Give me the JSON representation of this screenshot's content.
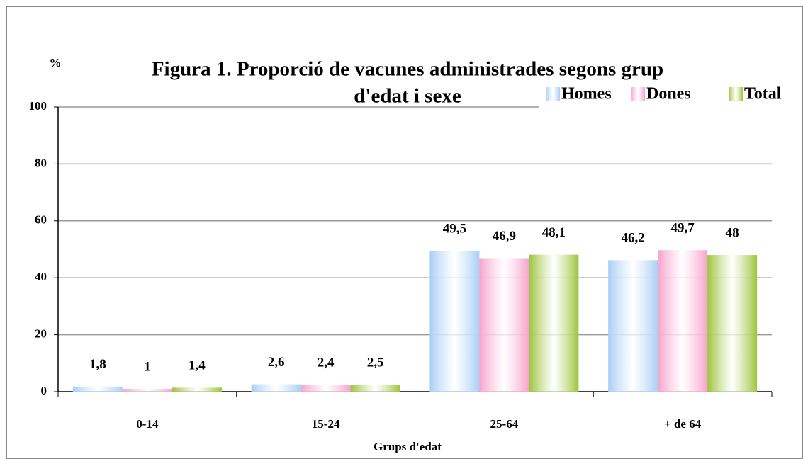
{
  "chart_data": {
    "type": "bar",
    "title": [
      "Figura 1. Proporció de vacunes administrades segons grup",
      "d'edat i sexe"
    ],
    "y_label": "%",
    "x_label": "Grups d'edat",
    "categories": [
      "0-14",
      "15-24",
      "25-64",
      "+ de 64"
    ],
    "series": [
      {
        "name": "Homes",
        "color": "#a9cff5",
        "values": [
          1.8,
          2.6,
          49.5,
          46.2
        ],
        "value_labels": [
          "1,8",
          "2,6",
          "49,5",
          "46,2"
        ]
      },
      {
        "name": "Dones",
        "color": "#f7a3cd",
        "values": [
          1,
          2.4,
          46.9,
          49.7
        ],
        "value_labels": [
          "1",
          "2,4",
          "46,9",
          "49,7"
        ]
      },
      {
        "name": "Total",
        "color": "#9dc43c",
        "values": [
          1.4,
          2.5,
          48.1,
          48
        ],
        "value_labels": [
          "1,4",
          "2,5",
          "48,1",
          "48"
        ]
      }
    ],
    "ylim": [
      0,
      100
    ],
    "yticks": [
      0,
      20,
      40,
      60,
      80,
      100
    ],
    "grid": true,
    "legend": "top-right"
  }
}
